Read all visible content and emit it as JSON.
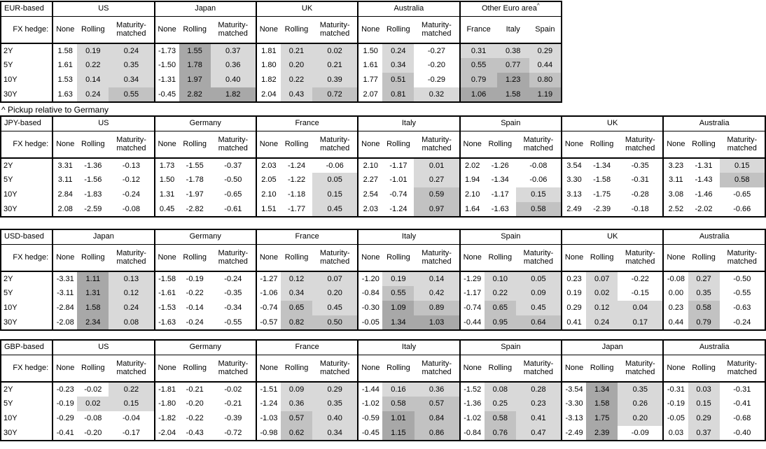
{
  "footnote": "^ Pickup relative to Germany",
  "row_header_label": "FX hedge:",
  "tenors": [
    "2Y",
    "5Y",
    "10Y",
    "30Y"
  ],
  "hedge_columns": [
    "None",
    "Rolling",
    "Maturity-matched"
  ],
  "shading_colors": {
    "light": "#d9d9d9",
    "medium": "#c2c2c2",
    "dark": "#a8a8a8"
  },
  "shading_rule": "hedged columns only: value 0 to 0.5 light, 0.5 to 1.0 medium, 1.0+ dark, negative white",
  "tables": [
    {
      "base": "EUR-based",
      "groups": [
        {
          "name": "US",
          "rows": [
            [
              1.58,
              0.19,
              0.24
            ],
            [
              1.61,
              0.22,
              0.35
            ],
            [
              1.53,
              0.14,
              0.34
            ],
            [
              1.63,
              0.24,
              0.55
            ]
          ]
        },
        {
          "name": "Japan",
          "rows": [
            [
              -1.73,
              1.55,
              0.37
            ],
            [
              -1.5,
              1.78,
              0.36
            ],
            [
              -1.31,
              1.97,
              0.4
            ],
            [
              -0.45,
              2.82,
              1.82
            ]
          ]
        },
        {
          "name": "UK",
          "rows": [
            [
              1.81,
              0.21,
              0.02
            ],
            [
              1.8,
              0.2,
              0.21
            ],
            [
              1.82,
              0.22,
              0.39
            ],
            [
              2.04,
              0.43,
              0.72
            ]
          ]
        },
        {
          "name": "Australia",
          "rows": [
            [
              1.5,
              0.24,
              -0.27
            ],
            [
              1.61,
              0.34,
              -0.2
            ],
            [
              1.77,
              0.51,
              -0.29
            ],
            [
              2.07,
              0.81,
              0.32
            ]
          ]
        },
        {
          "name": "Other Euro area",
          "sup": "^",
          "columns": [
            "France",
            "Italy",
            "Spain"
          ],
          "shade_all": true,
          "rows": [
            [
              0.31,
              0.38,
              0.29
            ],
            [
              0.55,
              0.77,
              0.44
            ],
            [
              0.79,
              1.23,
              0.8
            ],
            [
              1.06,
              1.58,
              1.19
            ]
          ]
        }
      ]
    },
    {
      "base": "JPY-based",
      "groups": [
        {
          "name": "US",
          "rows": [
            [
              3.31,
              -1.36,
              -0.13
            ],
            [
              3.11,
              -1.56,
              -0.12
            ],
            [
              2.84,
              -1.83,
              -0.24
            ],
            [
              2.08,
              -2.59,
              -0.08
            ]
          ]
        },
        {
          "name": "Germany",
          "rows": [
            [
              1.73,
              -1.55,
              -0.37
            ],
            [
              1.5,
              -1.78,
              -0.5
            ],
            [
              1.31,
              -1.97,
              -0.65
            ],
            [
              0.45,
              -2.82,
              -0.61
            ]
          ]
        },
        {
          "name": "France",
          "rows": [
            [
              2.03,
              -1.24,
              -0.06
            ],
            [
              2.05,
              -1.22,
              0.05
            ],
            [
              2.1,
              -1.18,
              0.15
            ],
            [
              1.51,
              -1.77,
              0.45
            ]
          ]
        },
        {
          "name": "Italy",
          "rows": [
            [
              2.1,
              -1.17,
              0.01
            ],
            [
              2.27,
              -1.01,
              0.27
            ],
            [
              2.54,
              -0.74,
              0.59
            ],
            [
              2.03,
              -1.24,
              0.97
            ]
          ]
        },
        {
          "name": "Spain",
          "rows": [
            [
              2.02,
              -1.26,
              -0.08
            ],
            [
              1.94,
              -1.34,
              -0.06
            ],
            [
              2.1,
              -1.17,
              0.15
            ],
            [
              1.64,
              -1.63,
              0.58
            ]
          ]
        },
        {
          "name": "UK",
          "rows": [
            [
              3.54,
              -1.34,
              -0.35
            ],
            [
              3.3,
              -1.58,
              -0.31
            ],
            [
              3.13,
              -1.75,
              -0.28
            ],
            [
              2.49,
              -2.39,
              -0.18
            ]
          ]
        },
        {
          "name": "Australia",
          "rows": [
            [
              3.23,
              -1.31,
              0.15
            ],
            [
              3.11,
              -1.43,
              0.58
            ],
            [
              3.08,
              -1.46,
              -0.65
            ],
            [
              2.52,
              -2.02,
              -0.66
            ]
          ]
        }
      ]
    },
    {
      "base": "USD-based",
      "groups": [
        {
          "name": "Japan",
          "rows": [
            [
              -3.31,
              1.11,
              0.13
            ],
            [
              -3.11,
              1.31,
              0.12
            ],
            [
              -2.84,
              1.58,
              0.24
            ],
            [
              -2.08,
              2.34,
              0.08
            ]
          ]
        },
        {
          "name": "Germany",
          "rows": [
            [
              -1.58,
              -0.19,
              -0.24
            ],
            [
              -1.61,
              -0.22,
              -0.35
            ],
            [
              -1.53,
              -0.14,
              -0.34
            ],
            [
              -1.63,
              -0.24,
              -0.55
            ]
          ]
        },
        {
          "name": "France",
          "rows": [
            [
              -1.27,
              0.12,
              0.07
            ],
            [
              -1.06,
              0.34,
              0.2
            ],
            [
              -0.74,
              0.65,
              0.45
            ],
            [
              -0.57,
              0.82,
              0.5
            ]
          ]
        },
        {
          "name": "Italy",
          "rows": [
            [
              -1.2,
              0.19,
              0.14
            ],
            [
              -0.84,
              0.55,
              0.42
            ],
            [
              -0.3,
              1.09,
              0.89
            ],
            [
              -0.05,
              1.34,
              1.03
            ]
          ]
        },
        {
          "name": "Spain",
          "rows": [
            [
              -1.29,
              0.1,
              0.05
            ],
            [
              -1.17,
              0.22,
              0.09
            ],
            [
              -0.74,
              0.65,
              0.45
            ],
            [
              -0.44,
              0.95,
              0.64
            ]
          ]
        },
        {
          "name": "UK",
          "rows": [
            [
              0.23,
              0.07,
              -0.22
            ],
            [
              0.19,
              0.02,
              -0.15
            ],
            [
              0.29,
              0.12,
              0.04
            ],
            [
              0.41,
              0.24,
              0.17
            ]
          ]
        },
        {
          "name": "Australia",
          "rows": [
            [
              -0.08,
              0.27,
              -0.5
            ],
            [
              0.0,
              0.35,
              -0.55
            ],
            [
              0.23,
              0.58,
              -0.63
            ],
            [
              0.44,
              0.79,
              -0.24
            ]
          ]
        }
      ]
    },
    {
      "base": "GBP-based",
      "groups": [
        {
          "name": "US",
          "rows": [
            [
              -0.23,
              -0.02,
              0.22
            ],
            [
              -0.19,
              0.02,
              0.15
            ],
            [
              -0.29,
              -0.08,
              -0.04
            ],
            [
              -0.41,
              -0.2,
              -0.17
            ]
          ]
        },
        {
          "name": "Germany",
          "rows": [
            [
              -1.81,
              -0.21,
              -0.02
            ],
            [
              -1.8,
              -0.2,
              -0.21
            ],
            [
              -1.82,
              -0.22,
              -0.39
            ],
            [
              -2.04,
              -0.43,
              -0.72
            ]
          ]
        },
        {
          "name": "France",
          "rows": [
            [
              -1.51,
              0.09,
              0.29
            ],
            [
              -1.24,
              0.36,
              0.35
            ],
            [
              -1.03,
              0.57,
              0.4
            ],
            [
              -0.98,
              0.62,
              0.34
            ]
          ]
        },
        {
          "name": "Italy",
          "rows": [
            [
              -1.44,
              0.16,
              0.36
            ],
            [
              -1.02,
              0.58,
              0.57
            ],
            [
              -0.59,
              1.01,
              0.84
            ],
            [
              -0.45,
              1.15,
              0.86
            ]
          ]
        },
        {
          "name": "Spain",
          "rows": [
            [
              -1.52,
              0.08,
              0.28
            ],
            [
              -1.36,
              0.25,
              0.23
            ],
            [
              -1.02,
              0.58,
              0.41
            ],
            [
              -0.84,
              0.76,
              0.47
            ]
          ]
        },
        {
          "name": "Japan",
          "rows": [
            [
              -3.54,
              1.34,
              0.35
            ],
            [
              -3.3,
              1.58,
              0.26
            ],
            [
              -3.13,
              1.75,
              0.2
            ],
            [
              -2.49,
              2.39,
              -0.09
            ]
          ]
        },
        {
          "name": "Australia",
          "rows": [
            [
              -0.31,
              0.03,
              -0.31
            ],
            [
              -0.19,
              0.15,
              -0.41
            ],
            [
              -0.05,
              0.29,
              -0.68
            ],
            [
              0.03,
              0.37,
              -0.4
            ]
          ]
        }
      ]
    }
  ]
}
